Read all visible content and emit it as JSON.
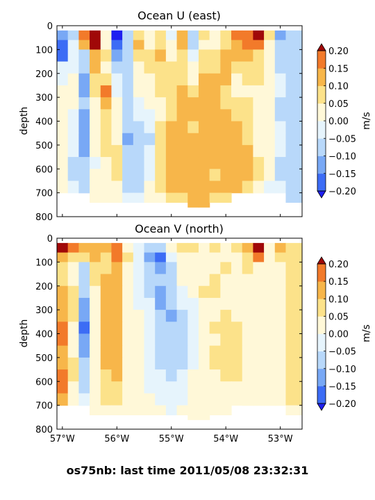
{
  "figure": {
    "caption": "os75nb: last time 2011/05/08 23:32:31"
  },
  "colorbar": {
    "label": "m/s",
    "levels": [
      -0.2,
      -0.15,
      -0.1,
      -0.05,
      0.0,
      0.05,
      0.1,
      0.15,
      0.2
    ],
    "tick_labels": [
      "0.20",
      "0.15",
      "0.10",
      "0.05",
      "0.00",
      "−0.05",
      "−0.10",
      "−0.15",
      "−0.20"
    ],
    "colors": [
      "#1f1ff0",
      "#3c6cf5",
      "#78a8f5",
      "#b8d8fa",
      "#e6f4fc",
      "#fff8d8",
      "#fce28a",
      "#f7b64a",
      "#f27a2a",
      "#e0281e",
      "#a00808"
    ]
  },
  "chart_data": [
    {
      "type": "heatmap",
      "title": "Ocean U (east)",
      "xlabel": "",
      "ylabel": "depth",
      "xlim": [
        -57.1,
        -52.6
      ],
      "ylim": [
        800,
        0
      ],
      "grid": false,
      "x_ticks": [
        -57,
        -56,
        -55,
        -54,
        -53
      ],
      "x_tick_labels": [
        "",
        "",
        "",
        "",
        ""
      ],
      "y_ticks": [
        0,
        100,
        200,
        300,
        400,
        500,
        600,
        700,
        800
      ],
      "y_tick_labels": [
        "0",
        "100",
        "200",
        "300",
        "400",
        "500",
        "600",
        "700",
        "800"
      ],
      "x_edges": [
        -57.1,
        -56.9,
        -56.7,
        -56.5,
        -56.3,
        -56.1,
        -55.9,
        -55.7,
        -55.5,
        -55.3,
        -55.1,
        -54.9,
        -54.7,
        -54.5,
        -54.3,
        -54.1,
        -53.9,
        -53.7,
        -53.5,
        -53.3,
        -53.1,
        -52.9,
        -52.6
      ],
      "depth_edges": [
        20,
        60,
        100,
        150,
        200,
        250,
        300,
        350,
        400,
        450,
        500,
        550,
        600,
        650,
        700,
        740
      ],
      "values_m_s": [
        [
          -0.12,
          -0.06,
          0.18,
          0.22,
          0.04,
          -0.22,
          -0.08,
          0.06,
          0.02,
          0.06,
          -0.02,
          0.12,
          -0.06,
          0.06,
          0.04,
          0.06,
          0.16,
          0.18,
          0.2,
          0.05,
          -0.12,
          -0.08
        ],
        [
          -0.16,
          -0.04,
          0.12,
          0.22,
          0.04,
          -0.2,
          -0.08,
          0.1,
          0.04,
          0.08,
          0.0,
          0.1,
          -0.06,
          0.04,
          0.04,
          0.08,
          0.12,
          0.16,
          0.16,
          0.04,
          -0.1,
          -0.1
        ],
        [
          -0.18,
          -0.02,
          -0.06,
          0.14,
          0.06,
          -0.12,
          -0.06,
          0.06,
          0.06,
          0.1,
          0.04,
          0.08,
          -0.04,
          0.06,
          0.06,
          0.1,
          0.1,
          0.1,
          0.08,
          0.04,
          -0.08,
          -0.06
        ],
        [
          -0.04,
          -0.02,
          -0.08,
          0.1,
          0.04,
          -0.08,
          -0.06,
          0.04,
          0.06,
          0.08,
          0.06,
          0.08,
          0.0,
          0.08,
          0.08,
          0.1,
          0.06,
          0.08,
          0.06,
          0.02,
          -0.06,
          -0.08
        ],
        [
          -0.02,
          0.02,
          -0.12,
          0.08,
          0.08,
          -0.04,
          -0.06,
          0.02,
          0.04,
          0.06,
          0.06,
          0.08,
          0.04,
          0.1,
          0.1,
          0.1,
          0.04,
          0.06,
          0.06,
          0.0,
          -0.04,
          -0.1
        ],
        [
          0.0,
          0.04,
          -0.12,
          0.06,
          0.16,
          -0.02,
          -0.08,
          0.0,
          0.02,
          0.06,
          0.06,
          0.1,
          0.06,
          0.1,
          0.1,
          0.08,
          0.04,
          0.04,
          0.04,
          0.0,
          -0.04,
          -0.08
        ],
        [
          0.02,
          0.0,
          -0.1,
          0.04,
          0.1,
          0.0,
          -0.08,
          -0.02,
          0.0,
          0.04,
          0.08,
          0.1,
          0.1,
          0.12,
          0.12,
          0.08,
          0.06,
          0.06,
          0.02,
          0.0,
          -0.06,
          -0.06
        ],
        [
          0.02,
          -0.02,
          -0.12,
          0.02,
          0.08,
          0.02,
          -0.1,
          -0.04,
          -0.02,
          0.04,
          0.08,
          0.12,
          0.1,
          0.1,
          0.12,
          0.1,
          0.08,
          0.06,
          0.02,
          0.0,
          -0.06,
          -0.06
        ],
        [
          0.0,
          -0.02,
          -0.14,
          0.0,
          0.08,
          0.02,
          -0.1,
          -0.06,
          -0.04,
          0.06,
          0.1,
          0.12,
          0.08,
          0.14,
          0.1,
          0.12,
          0.1,
          0.08,
          0.02,
          0.0,
          -0.04,
          -0.06
        ],
        [
          0.0,
          -0.04,
          -0.14,
          0.0,
          0.06,
          0.04,
          -0.12,
          -0.06,
          -0.06,
          0.08,
          0.12,
          0.1,
          0.1,
          0.14,
          0.12,
          0.12,
          0.12,
          0.08,
          0.04,
          0.0,
          -0.04,
          -0.06
        ],
        [
          0.02,
          -0.04,
          -0.12,
          0.0,
          0.06,
          0.06,
          -0.1,
          -0.06,
          -0.04,
          0.08,
          0.12,
          0.12,
          0.12,
          0.12,
          0.1,
          0.14,
          0.12,
          0.1,
          0.04,
          0.0,
          -0.04,
          -0.06
        ],
        [
          0.02,
          -0.06,
          -0.1,
          -0.02,
          0.04,
          0.06,
          -0.1,
          -0.06,
          -0.02,
          0.06,
          0.14,
          0.12,
          0.1,
          0.1,
          0.1,
          0.14,
          0.12,
          0.1,
          0.06,
          0.0,
          -0.06,
          -0.06
        ],
        [
          0.02,
          -0.06,
          -0.1,
          0.0,
          0.04,
          0.06,
          -0.08,
          -0.08,
          -0.02,
          0.06,
          0.12,
          0.14,
          0.12,
          0.1,
          0.08,
          0.12,
          0.12,
          0.1,
          0.06,
          0.0,
          -0.06,
          -0.06
        ],
        [
          0.0,
          -0.04,
          -0.08,
          0.02,
          0.02,
          0.04,
          -0.06,
          -0.06,
          0.0,
          0.06,
          0.1,
          0.12,
          0.14,
          0.12,
          0.1,
          0.1,
          0.1,
          0.08,
          0.04,
          -0.02,
          -0.04,
          -0.06
        ],
        [
          0.0,
          -0.02,
          -0.06,
          0.02,
          0.02,
          0.04,
          -0.04,
          -0.04,
          0.0,
          0.04,
          0.06,
          0.08,
          0.12,
          0.1,
          0.08,
          0.08,
          0.08,
          0.06,
          0.04,
          -0.04,
          -0.04,
          -0.06
        ]
      ],
      "valid_depth_max": [
        680,
        680,
        700,
        740,
        740,
        740,
        740,
        740,
        740,
        740,
        740,
        740,
        760,
        760,
        740,
        740,
        680,
        700,
        700,
        700,
        700,
        740
      ]
    },
    {
      "type": "heatmap",
      "title": "Ocean V (north)",
      "xlabel": "",
      "ylabel": "depth",
      "xlim": [
        -57.1,
        -52.6
      ],
      "ylim": [
        800,
        0
      ],
      "grid": false,
      "x_ticks": [
        -57,
        -56,
        -55,
        -54,
        -53
      ],
      "x_tick_labels": [
        "57°W",
        "56°W",
        "55°W",
        "54°W",
        "53°W"
      ],
      "y_ticks": [
        0,
        100,
        200,
        300,
        400,
        500,
        600,
        700,
        800
      ],
      "y_tick_labels": [
        "0",
        "100",
        "200",
        "300",
        "400",
        "500",
        "600",
        "700",
        "800"
      ],
      "x_edges": [
        -57.1,
        -56.9,
        -56.7,
        -56.5,
        -56.3,
        -56.1,
        -55.9,
        -55.7,
        -55.5,
        -55.3,
        -55.1,
        -54.9,
        -54.7,
        -54.5,
        -54.3,
        -54.1,
        -53.9,
        -53.7,
        -53.5,
        -53.3,
        -53.1,
        -52.9,
        -52.6
      ],
      "depth_edges": [
        20,
        60,
        100,
        150,
        200,
        250,
        300,
        350,
        400,
        450,
        500,
        550,
        600,
        650,
        700,
        740
      ],
      "values_m_s": [
        [
          0.2,
          0.16,
          0.1,
          0.14,
          0.12,
          0.18,
          0.04,
          -0.04,
          -0.1,
          -0.08,
          0.04,
          0.08,
          0.06,
          0.04,
          0.06,
          0.04,
          0.06,
          0.1,
          0.2,
          0.04,
          0.12,
          0.08
        ],
        [
          0.14,
          0.06,
          0.06,
          0.1,
          0.08,
          0.18,
          0.06,
          -0.02,
          -0.12,
          -0.2,
          -0.04,
          0.04,
          0.04,
          0.02,
          0.04,
          0.04,
          0.04,
          0.08,
          0.16,
          0.02,
          0.06,
          0.06
        ],
        [
          0.06,
          0.04,
          -0.06,
          0.08,
          0.08,
          0.12,
          0.04,
          -0.04,
          -0.1,
          -0.14,
          -0.08,
          0.0,
          0.02,
          0.02,
          0.04,
          0.06,
          0.02,
          0.06,
          0.04,
          0.02,
          0.04,
          0.06
        ],
        [
          0.08,
          0.04,
          -0.08,
          0.06,
          0.1,
          0.1,
          0.04,
          -0.04,
          -0.08,
          -0.1,
          -0.08,
          0.0,
          0.02,
          0.04,
          0.06,
          0.04,
          0.02,
          0.04,
          0.04,
          0.02,
          0.04,
          0.06
        ],
        [
          0.1,
          0.06,
          -0.1,
          0.04,
          0.12,
          0.1,
          0.04,
          -0.02,
          -0.06,
          -0.12,
          -0.08,
          -0.02,
          0.0,
          0.06,
          0.06,
          0.02,
          0.04,
          0.04,
          0.04,
          0.02,
          0.04,
          0.06
        ],
        [
          0.12,
          0.06,
          -0.12,
          0.02,
          0.12,
          0.12,
          0.02,
          -0.02,
          -0.04,
          -0.12,
          -0.1,
          -0.04,
          -0.02,
          0.04,
          0.04,
          0.04,
          0.04,
          0.02,
          0.02,
          0.02,
          0.04,
          0.06
        ],
        [
          0.14,
          0.06,
          -0.14,
          0.02,
          0.1,
          0.12,
          0.02,
          0.0,
          -0.04,
          -0.1,
          -0.12,
          -0.06,
          -0.04,
          0.02,
          0.04,
          0.06,
          0.04,
          0.02,
          0.02,
          0.02,
          0.04,
          0.06
        ],
        [
          0.16,
          0.04,
          -0.16,
          0.02,
          0.1,
          0.1,
          0.02,
          0.0,
          -0.04,
          -0.08,
          -0.1,
          -0.08,
          -0.04,
          0.02,
          0.06,
          0.06,
          0.06,
          0.04,
          0.02,
          0.02,
          0.04,
          0.06
        ],
        [
          0.16,
          0.04,
          -0.14,
          0.04,
          0.12,
          0.1,
          0.04,
          0.0,
          -0.04,
          -0.06,
          -0.08,
          -0.08,
          -0.04,
          0.02,
          0.04,
          0.06,
          0.06,
          0.04,
          0.04,
          0.02,
          0.04,
          0.06
        ],
        [
          0.14,
          0.04,
          -0.12,
          0.04,
          0.1,
          0.12,
          0.02,
          0.0,
          -0.02,
          -0.06,
          -0.08,
          -0.06,
          -0.02,
          0.04,
          0.06,
          0.08,
          0.06,
          0.04,
          0.04,
          0.02,
          0.04,
          0.06
        ],
        [
          0.12,
          0.06,
          -0.1,
          0.04,
          0.1,
          0.12,
          0.02,
          0.0,
          -0.02,
          -0.06,
          -0.06,
          -0.06,
          -0.02,
          0.04,
          0.06,
          0.08,
          0.06,
          0.04,
          0.04,
          0.02,
          0.04,
          0.06
        ],
        [
          0.16,
          0.06,
          -0.08,
          0.04,
          0.08,
          0.1,
          0.04,
          0.0,
          -0.02,
          -0.04,
          -0.06,
          -0.04,
          0.0,
          0.04,
          0.04,
          0.06,
          0.06,
          0.04,
          0.04,
          0.02,
          0.04,
          0.08
        ],
        [
          0.18,
          0.04,
          -0.06,
          0.04,
          0.08,
          0.08,
          0.04,
          0.02,
          -0.02,
          -0.04,
          -0.04,
          -0.02,
          0.0,
          0.04,
          0.04,
          0.04,
          0.04,
          0.04,
          0.04,
          0.02,
          0.04,
          0.08
        ],
        [
          0.14,
          0.04,
          -0.04,
          0.04,
          0.06,
          0.06,
          0.04,
          0.02,
          0.0,
          -0.02,
          -0.02,
          -0.02,
          0.0,
          0.04,
          0.04,
          0.04,
          0.04,
          0.04,
          0.04,
          0.02,
          0.04,
          0.06
        ],
        [
          0.08,
          0.02,
          -0.02,
          0.02,
          0.04,
          0.04,
          0.02,
          0.02,
          0.0,
          0.0,
          -0.02,
          0.0,
          0.0,
          0.02,
          0.02,
          0.02,
          0.02,
          0.02,
          0.02,
          0.02,
          0.02,
          0.04
        ]
      ],
      "valid_depth_max": [
        680,
        680,
        700,
        740,
        740,
        740,
        740,
        740,
        740,
        740,
        740,
        740,
        760,
        760,
        740,
        740,
        680,
        700,
        700,
        700,
        700,
        740
      ]
    }
  ]
}
